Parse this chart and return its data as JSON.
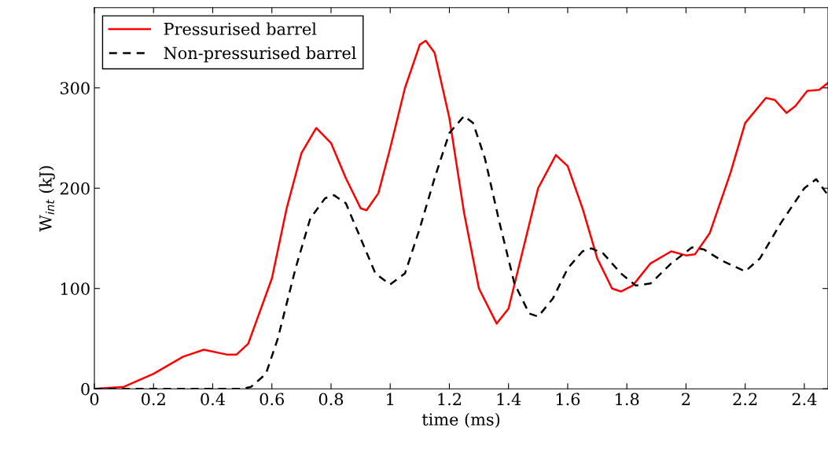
{
  "chart_data": {
    "type": "line",
    "xlabel": "time (ms)",
    "ylabel": "W$_{int}$ (kJ)",
    "xlim": [
      0,
      2.48
    ],
    "ylim": [
      0,
      380
    ],
    "xticks": [
      0,
      0.2,
      0.4,
      0.6,
      0.8,
      1,
      1.2,
      1.4,
      1.6,
      1.8,
      2,
      2.2,
      2.4
    ],
    "yticks": [
      0,
      100,
      200,
      300
    ],
    "legend": "top left",
    "grid": false,
    "series": [
      {
        "name": "Pressurised barrel",
        "color": "#ff0000",
        "line_style": "solid",
        "x": [
          0,
          0.1,
          0.2,
          0.3,
          0.37,
          0.45,
          0.48,
          0.52,
          0.6,
          0.65,
          0.7,
          0.75,
          0.8,
          0.85,
          0.9,
          0.92,
          0.96,
          1.0,
          1.05,
          1.1,
          1.12,
          1.15,
          1.2,
          1.25,
          1.3,
          1.36,
          1.4,
          1.45,
          1.5,
          1.56,
          1.6,
          1.65,
          1.7,
          1.75,
          1.78,
          1.82,
          1.88,
          1.95,
          2.0,
          2.03,
          2.08,
          2.15,
          2.2,
          2.27,
          2.3,
          2.34,
          2.37,
          2.41,
          2.45,
          2.48
        ],
        "values": [
          0,
          2,
          15,
          32,
          39,
          34,
          34,
          45,
          110,
          180,
          235,
          260,
          245,
          210,
          180,
          178,
          195,
          240,
          300,
          343,
          347,
          335,
          270,
          175,
          100,
          65,
          80,
          140,
          200,
          233,
          222,
          180,
          130,
          100,
          97,
          103,
          125,
          137,
          133,
          134,
          155,
          215,
          265,
          290,
          288,
          275,
          282,
          297,
          298,
          305
        ]
      },
      {
        "name": "Non-pressurised barrel",
        "color": "#000000",
        "line_style": "dashed",
        "x": [
          0,
          0.5,
          0.53,
          0.58,
          0.62,
          0.68,
          0.73,
          0.78,
          0.81,
          0.85,
          0.9,
          0.95,
          1.0,
          1.05,
          1.1,
          1.15,
          1.2,
          1.25,
          1.28,
          1.32,
          1.37,
          1.42,
          1.47,
          1.5,
          1.55,
          1.6,
          1.65,
          1.68,
          1.72,
          1.78,
          1.83,
          1.88,
          1.95,
          2.02,
          2.06,
          2.12,
          2.2,
          2.25,
          2.32,
          2.4,
          2.44,
          2.48
        ],
        "values": [
          0,
          0,
          2,
          15,
          50,
          120,
          170,
          190,
          193,
          185,
          150,
          115,
          104,
          115,
          160,
          210,
          255,
          272,
          265,
          230,
          165,
          105,
          75,
          72,
          90,
          120,
          137,
          140,
          135,
          115,
          103,
          105,
          125,
          141,
          139,
          128,
          117,
          130,
          165,
          200,
          209,
          193
        ]
      }
    ]
  }
}
